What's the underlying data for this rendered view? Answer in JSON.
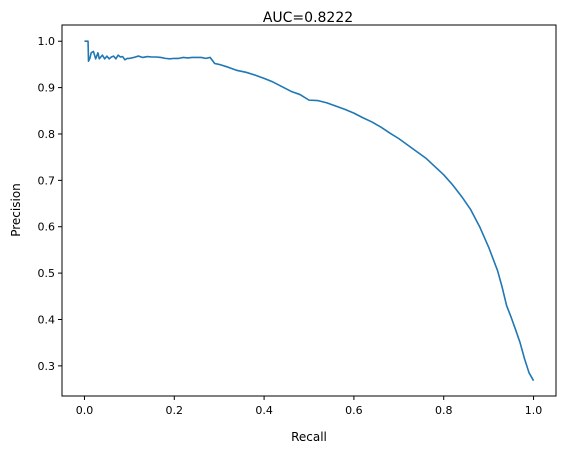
{
  "chart_data": {
    "type": "line",
    "title": "AUC=0.8222",
    "xlabel": "Recall",
    "ylabel": "Precision",
    "xlim": [
      -0.05,
      1.05
    ],
    "ylim": [
      0.235,
      1.035
    ],
    "x_ticks": [
      0.0,
      0.2,
      0.4,
      0.6,
      0.8,
      1.0
    ],
    "x_tick_labels": [
      "0.0",
      "0.2",
      "0.4",
      "0.6",
      "0.8",
      "1.0"
    ],
    "y_ticks": [
      0.3,
      0.4,
      0.5,
      0.6,
      0.7,
      0.8,
      0.9,
      1.0
    ],
    "y_tick_labels": [
      "0.3",
      "0.4",
      "0.5",
      "0.6",
      "0.7",
      "0.8",
      "0.9",
      "1.0"
    ],
    "grid": false,
    "legend": "none",
    "series": [
      {
        "color": "#1f77b4",
        "x": [
          0.0,
          0.008,
          0.009,
          0.012,
          0.015,
          0.02,
          0.025,
          0.03,
          0.033,
          0.04,
          0.045,
          0.05,
          0.055,
          0.06,
          0.065,
          0.07,
          0.075,
          0.08,
          0.085,
          0.09,
          0.095,
          0.1,
          0.11,
          0.12,
          0.13,
          0.14,
          0.15,
          0.16,
          0.17,
          0.18,
          0.19,
          0.2,
          0.21,
          0.22,
          0.23,
          0.24,
          0.25,
          0.26,
          0.27,
          0.28,
          0.29,
          0.3,
          0.32,
          0.34,
          0.36,
          0.38,
          0.4,
          0.42,
          0.44,
          0.46,
          0.48,
          0.5,
          0.52,
          0.54,
          0.56,
          0.58,
          0.6,
          0.62,
          0.64,
          0.66,
          0.68,
          0.7,
          0.72,
          0.74,
          0.76,
          0.78,
          0.8,
          0.82,
          0.84,
          0.86,
          0.88,
          0.9,
          0.92,
          0.93,
          0.94,
          0.95,
          0.96,
          0.97,
          0.98,
          0.99,
          1.0
        ],
        "y": [
          1.0,
          1.0,
          0.957,
          0.963,
          0.975,
          0.978,
          0.962,
          0.975,
          0.962,
          0.97,
          0.962,
          0.968,
          0.962,
          0.966,
          0.968,
          0.962,
          0.97,
          0.966,
          0.967,
          0.96,
          0.963,
          0.963,
          0.965,
          0.968,
          0.965,
          0.967,
          0.966,
          0.966,
          0.965,
          0.963,
          0.962,
          0.963,
          0.963,
          0.965,
          0.964,
          0.965,
          0.965,
          0.965,
          0.963,
          0.965,
          0.952,
          0.95,
          0.944,
          0.937,
          0.933,
          0.927,
          0.92,
          0.912,
          0.902,
          0.892,
          0.885,
          0.873,
          0.872,
          0.867,
          0.86,
          0.853,
          0.845,
          0.835,
          0.826,
          0.815,
          0.802,
          0.79,
          0.776,
          0.762,
          0.748,
          0.73,
          0.712,
          0.69,
          0.665,
          0.637,
          0.6,
          0.556,
          0.505,
          0.47,
          0.43,
          0.405,
          0.378,
          0.35,
          0.315,
          0.285,
          0.268
        ]
      }
    ]
  }
}
